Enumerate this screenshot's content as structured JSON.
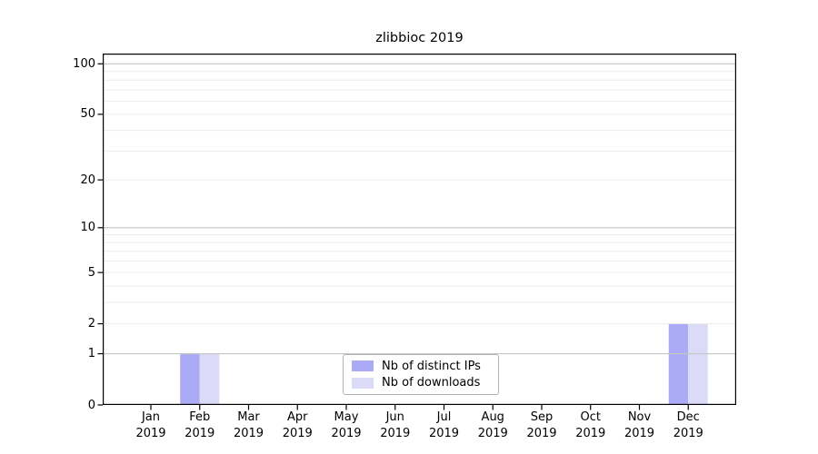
{
  "chart_data": {
    "type": "bar",
    "title": "zlibbioc 2019",
    "categories": [
      "Jan",
      "Feb",
      "Mar",
      "Apr",
      "May",
      "Jun",
      "Jul",
      "Aug",
      "Sep",
      "Oct",
      "Nov",
      "Dec"
    ],
    "x_year": "2019",
    "series": [
      {
        "name": "Nb of distinct IPs",
        "color": "#aaaaf5",
        "values": [
          0,
          1,
          0,
          0,
          0,
          0,
          0,
          0,
          0,
          0,
          0,
          2
        ]
      },
      {
        "name": "Nb of downloads",
        "color": "#dbdbf8",
        "values": [
          0,
          1,
          0,
          0,
          0,
          0,
          0,
          0,
          0,
          0,
          0,
          2
        ]
      }
    ],
    "yscale": "log1p",
    "ylim": [
      0,
      115
    ],
    "yticks": [
      0,
      1,
      2,
      5,
      10,
      20,
      50,
      100
    ],
    "gridlines_major": [
      1,
      10,
      100
    ],
    "gridlines_minor": [
      2,
      3,
      4,
      5,
      6,
      7,
      8,
      9,
      20,
      30,
      40,
      50,
      60,
      70,
      80,
      90
    ],
    "grid_major_color": "#c6c6c6",
    "grid_minor_color": "#ececec",
    "axis_color": "#000000",
    "background_color": "#ffffff",
    "legend_position": "lower center"
  }
}
